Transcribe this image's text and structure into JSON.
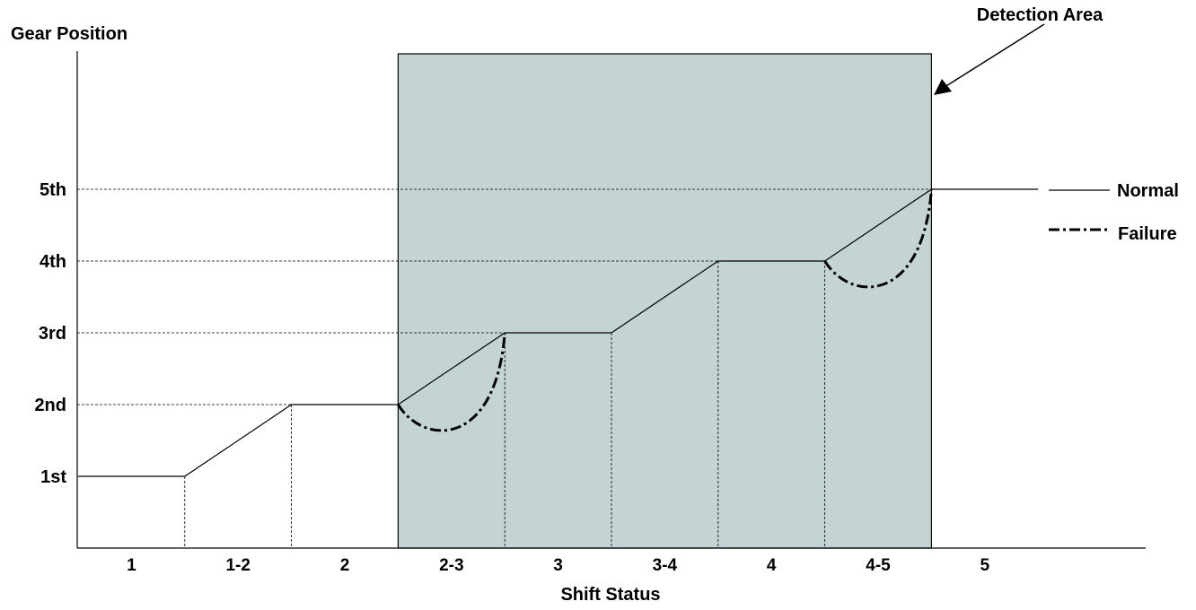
{
  "chart_data": {
    "type": "line",
    "title": "",
    "xlabel": "Shift Status",
    "ylabel": "Gear Position",
    "categories": [
      "1",
      "1-2",
      "2",
      "2-3",
      "3",
      "3-4",
      "4",
      "4-5",
      "5"
    ],
    "y_tick_labels": [
      "1st",
      "2nd",
      "3rd",
      "4th",
      "5th"
    ],
    "y_tick_values": [
      1,
      2,
      3,
      4,
      5
    ],
    "ylim": [
      0,
      6.9
    ],
    "series": [
      {
        "name": "Normal",
        "style": "solid",
        "x": [
          0,
          1,
          2,
          3,
          4,
          5,
          6,
          7,
          8,
          9
        ],
        "y": [
          1,
          1,
          2,
          2,
          3,
          3,
          4,
          4,
          5,
          5
        ]
      },
      {
        "name": "Failure",
        "style": "dash-dot",
        "segments": [
          {
            "x_start": 3,
            "x_end": 4,
            "y_start": 2,
            "y_end": 3,
            "y_min": 1.7
          },
          {
            "x_start": 7,
            "x_end": 8,
            "y_start": 4,
            "y_end": 5,
            "y_min": 3.7
          }
        ]
      }
    ],
    "highlight_region": {
      "label": "Detection Area",
      "x_range": [
        3,
        8
      ],
      "color": "#c4d4d4"
    },
    "legend_position": "right",
    "colors": {
      "normal": "#000000",
      "failure": "#000000",
      "region": "#c4d4d4"
    }
  }
}
